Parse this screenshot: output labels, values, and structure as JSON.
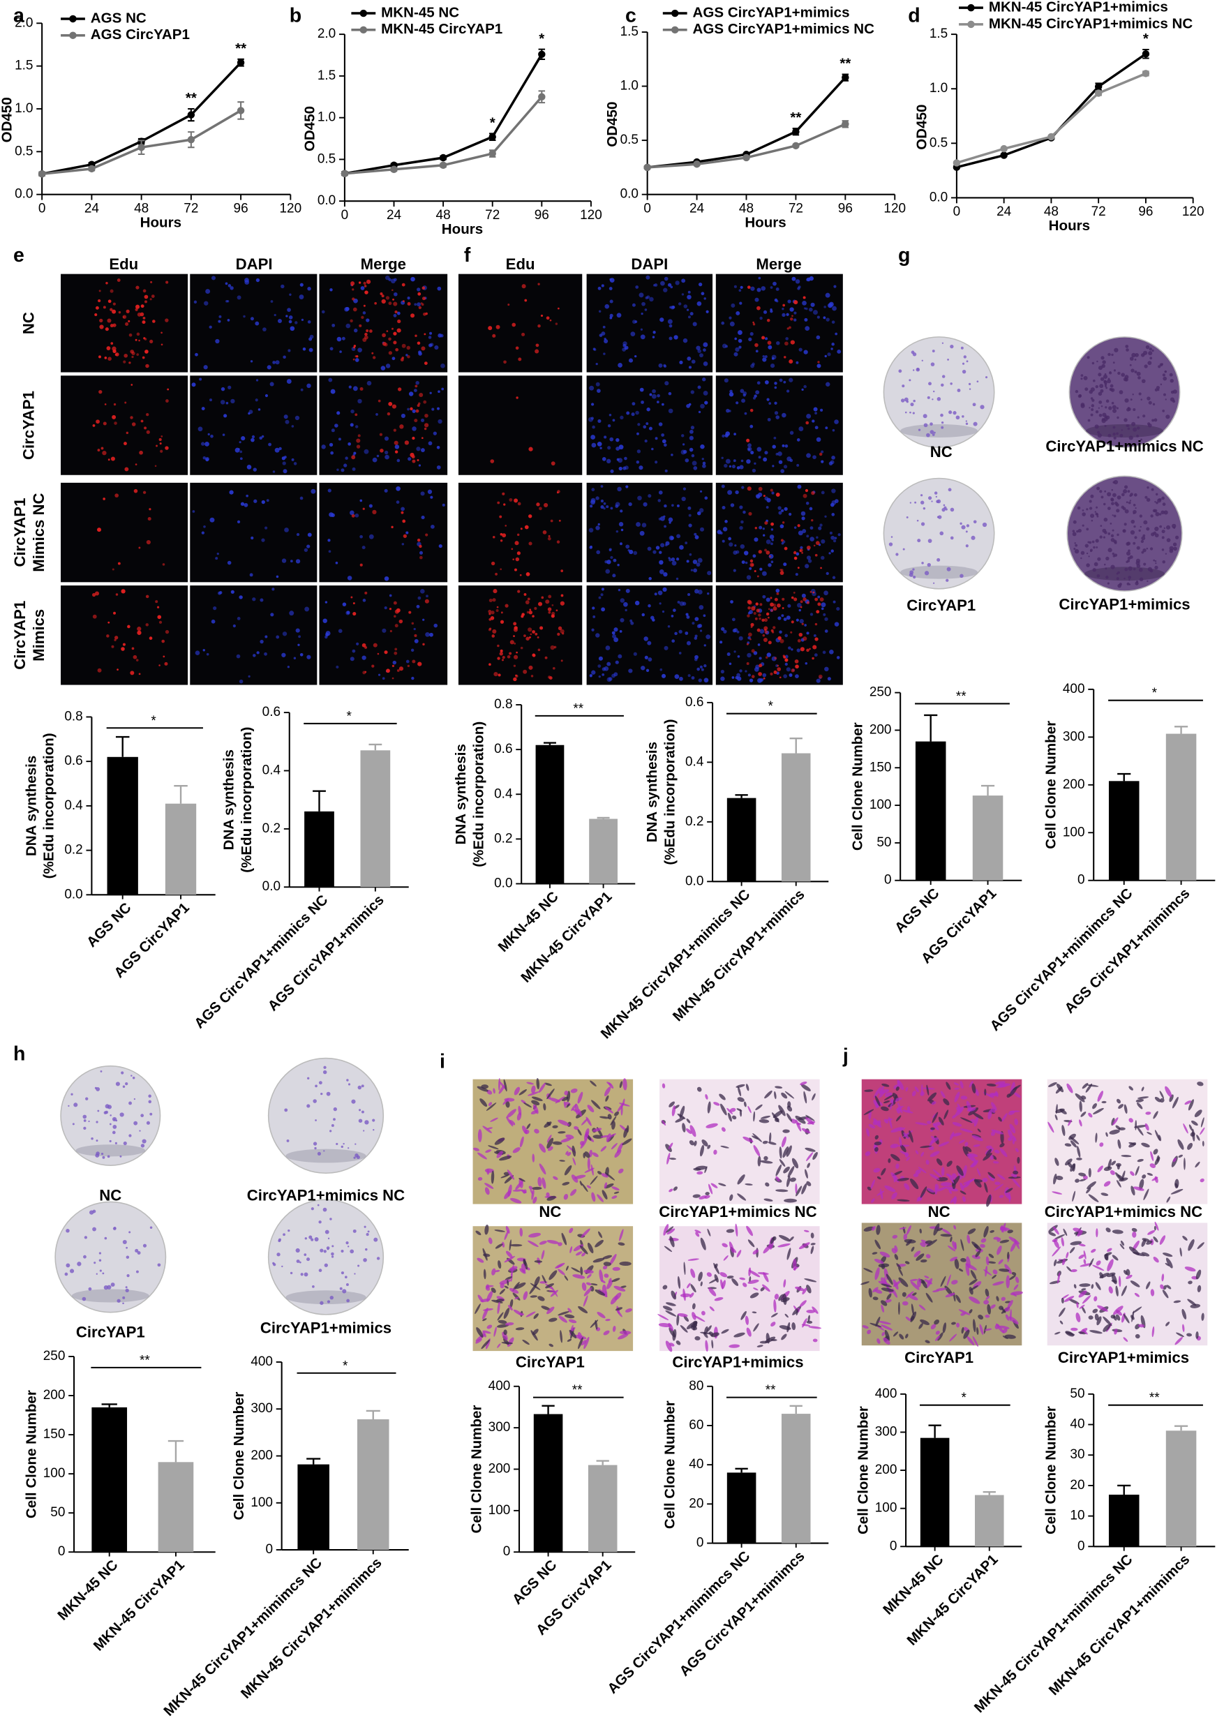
{
  "panel_letters": [
    "a",
    "b",
    "c",
    "d",
    "e",
    "f",
    "g",
    "h",
    "i",
    "j"
  ],
  "image_panels": {
    "e": {
      "columns": [
        "Edu",
        "DAPI",
        "Merge"
      ],
      "rows": [
        [
          "NC"
        ],
        [
          "CircYAP1"
        ],
        [
          "CircYAP1",
          "Mimics NC"
        ],
        [
          "CircYAP1",
          "Mimics"
        ]
      ]
    },
    "f": {
      "columns": [
        "Edu",
        "DAPI",
        "Merge"
      ]
    },
    "g": {
      "labels": [
        "NC",
        "CircYAP1+mimics NC",
        "CircYAP1",
        "CircYAP1+mimics"
      ]
    },
    "h": {
      "labels": [
        "NC",
        "CircYAP1+mimics NC",
        "CircYAP1",
        "CircYAP1+mimics"
      ]
    },
    "i": {
      "labels": [
        "NC",
        "CircYAP1+mimics NC",
        "CircYAP1",
        "CircYAP1+mimics"
      ]
    },
    "j": {
      "labels": [
        "NC",
        "CircYAP1+mimics NC",
        "CircYAP1",
        "CircYAP1+mimics"
      ]
    }
  },
  "chart_data": [
    {
      "type": "line",
      "xlabel": "Hours",
      "ylabel": "OD450",
      "x": [
        0,
        24,
        48,
        72,
        96
      ],
      "xlim": [
        0,
        120
      ],
      "xticks": [
        0,
        24,
        48,
        72,
        96,
        120
      ],
      "ylim": [
        0,
        2
      ],
      "yticks": [
        {
          "value": 0,
          "label": "0.0"
        },
        0.5,
        {
          "value": 1,
          "label": "1.0"
        },
        1.5,
        {
          "value": 2,
          "label": "2.0"
        }
      ],
      "series": [
        {
          "name": "AGS NC",
          "color": "#000000",
          "values": [
            0.24,
            0.35,
            0.62,
            0.93,
            1.54
          ],
          "errors": [
            0.02,
            0.02,
            0.03,
            0.07,
            0.04
          ]
        },
        {
          "name": "AGS CircYAP1",
          "color": "#737373",
          "values": [
            0.24,
            0.3,
            0.55,
            0.64,
            0.98
          ],
          "errors": [
            0.02,
            0.02,
            0.08,
            0.09,
            0.1
          ]
        }
      ],
      "significance": [
        null,
        null,
        null,
        "**",
        "**"
      ]
    },
    {
      "type": "line",
      "xlabel": "Hours",
      "ylabel": "OD450",
      "x": [
        0,
        24,
        48,
        72,
        96
      ],
      "xlim": [
        0,
        120
      ],
      "xticks": [
        0,
        24,
        48,
        72,
        96,
        120
      ],
      "ylim": [
        0,
        2
      ],
      "yticks": [
        {
          "value": 0,
          "label": "0.0"
        },
        0.5,
        {
          "value": 1,
          "label": "1.0"
        },
        1.5,
        {
          "value": 2,
          "label": "2.0"
        }
      ],
      "series": [
        {
          "name": "MKN-45 NC",
          "color": "#000000",
          "values": [
            0.33,
            0.43,
            0.52,
            0.77,
            1.76
          ],
          "errors": [
            0.02,
            0.02,
            0.02,
            0.04,
            0.06
          ]
        },
        {
          "name": "MKN-45 CircYAP1",
          "color": "#737373",
          "values": [
            0.33,
            0.38,
            0.43,
            0.57,
            1.25
          ],
          "errors": [
            0.02,
            0.02,
            0.02,
            0.04,
            0.07
          ]
        }
      ],
      "significance": [
        null,
        null,
        null,
        "*",
        "*"
      ]
    },
    {
      "type": "line",
      "xlabel": "Hours",
      "ylabel": "OD450",
      "x": [
        0,
        24,
        48,
        72,
        96
      ],
      "xlim": [
        0,
        120
      ],
      "xticks": [
        0,
        24,
        48,
        72,
        96,
        120
      ],
      "ylim": [
        0,
        1.5
      ],
      "yticks": [
        {
          "value": 0,
          "label": "0.0"
        },
        0.5,
        {
          "value": 1,
          "label": "1.0"
        },
        1.5
      ],
      "series": [
        {
          "name": "AGS CircYAP1+mimics",
          "color": "#000000",
          "values": [
            0.25,
            0.3,
            0.37,
            0.58,
            1.08
          ],
          "errors": [
            0.01,
            0.01,
            0.01,
            0.03,
            0.03
          ]
        },
        {
          "name": "AGS CircYAP1+mimics NC",
          "color": "#737373",
          "values": [
            0.25,
            0.28,
            0.34,
            0.45,
            0.65
          ],
          "errors": [
            0.01,
            0.01,
            0.01,
            0.01,
            0.03
          ]
        }
      ],
      "significance": [
        null,
        null,
        null,
        "**",
        "**"
      ]
    },
    {
      "type": "line",
      "xlabel": "Hours",
      "ylabel": "OD450",
      "x": [
        0,
        24,
        48,
        72,
        96
      ],
      "xlim": [
        0,
        120
      ],
      "xticks": [
        0,
        24,
        48,
        72,
        96,
        120
      ],
      "ylim": [
        0,
        1.5
      ],
      "yticks": [
        {
          "value": 0,
          "label": "0.0"
        },
        0.5,
        {
          "value": 1,
          "label": "1.0"
        },
        1.5
      ],
      "series": [
        {
          "name": "MKN-45 CircYAP1+mimics",
          "color": "#000000",
          "values": [
            0.28,
            0.39,
            0.55,
            1.02,
            1.32
          ],
          "errors": [
            0.01,
            0.01,
            0.01,
            0.03,
            0.04
          ]
        },
        {
          "name": "MKN-45 CircYAP1+mimics NC",
          "color": "#8c8c8c",
          "values": [
            0.32,
            0.45,
            0.56,
            0.96,
            1.14
          ],
          "errors": [
            0.01,
            0.01,
            0.01,
            0.02,
            0.02
          ]
        }
      ],
      "significance": [
        null,
        null,
        null,
        null,
        "*"
      ]
    },
    {
      "type": "bar",
      "ylabel": [
        "DNA synthesis",
        "(%Edu incorporation)"
      ],
      "categories": [
        "AGS NC",
        "AGS CircYAP1"
      ],
      "values": [
        0.62,
        0.41
      ],
      "errors": [
        0.09,
        0.08
      ],
      "colors": [
        "#000000",
        "#a6a6a6"
      ],
      "ylim": [
        0,
        0.8
      ],
      "yticks": [
        {
          "value": 0,
          "label": "0.0"
        },
        0.2,
        0.4,
        0.6,
        0.8
      ],
      "significance": "*"
    },
    {
      "type": "bar",
      "ylabel": [
        "DNA synthesis",
        "(%Edu incorporation)"
      ],
      "categories": [
        "AGS CircYAP1+mimics NC",
        "AGS CircYAP1+mimics"
      ],
      "values": [
        0.26,
        0.47
      ],
      "errors": [
        0.07,
        0.02
      ],
      "colors": [
        "#000000",
        "#a6a6a6"
      ],
      "ylim": [
        0,
        0.6
      ],
      "yticks": [
        {
          "value": 0,
          "label": "0.0"
        },
        0.2,
        0.4,
        0.6
      ],
      "significance": "*"
    },
    {
      "type": "bar",
      "ylabel": [
        "DNA synthesis",
        "(%Edu incorporation)"
      ],
      "categories": [
        "MKN-45 NC",
        "MKN-45 CircYAP1"
      ],
      "values": [
        0.62,
        0.29
      ],
      "errors": [
        0.01,
        0.005
      ],
      "colors": [
        "#000000",
        "#a6a6a6"
      ],
      "ylim": [
        0,
        0.8
      ],
      "yticks": [
        {
          "value": 0,
          "label": "0.0"
        },
        0.2,
        0.4,
        0.6,
        0.8
      ],
      "significance": "**"
    },
    {
      "type": "bar",
      "ylabel": [
        "DNA synthesis",
        "(%Edu incorporation)"
      ],
      "categories": [
        "MKN-45 CircYAP1+mimics NC",
        "MKN-45 CircYAP1+mimics"
      ],
      "values": [
        0.28,
        0.43
      ],
      "errors": [
        0.01,
        0.05
      ],
      "colors": [
        "#000000",
        "#a6a6a6"
      ],
      "ylim": [
        0,
        0.6
      ],
      "yticks": [
        {
          "value": 0,
          "label": "0.0"
        },
        0.2,
        0.4,
        0.6
      ],
      "significance": "*"
    },
    {
      "type": "bar",
      "ylabel": [
        "Cell Clone Number"
      ],
      "categories": [
        "AGS NC",
        "AGS CircYAP1"
      ],
      "values": [
        185,
        113
      ],
      "errors": [
        35,
        13
      ],
      "colors": [
        "#000000",
        "#a6a6a6"
      ],
      "ylim": [
        0,
        250
      ],
      "yticks": [
        0,
        50,
        100,
        150,
        200,
        250
      ],
      "significance": "**"
    },
    {
      "type": "bar",
      "ylabel": [
        "Cell Clone Number"
      ],
      "categories": [
        "AGS CircYAP1+mimimcs NC",
        "AGS CircYAP1+mimimcs"
      ],
      "values": [
        208,
        307
      ],
      "errors": [
        15,
        15
      ],
      "colors": [
        "#000000",
        "#a6a6a6"
      ],
      "ylim": [
        0,
        400
      ],
      "yticks": [
        0,
        100,
        200,
        300,
        400
      ],
      "significance": "*"
    },
    {
      "type": "bar",
      "ylabel": [
        "Cell Clone Number"
      ],
      "categories": [
        "MKN-45 NC",
        "MKN-45 CircYAP1"
      ],
      "values": [
        185,
        115
      ],
      "errors": [
        4,
        27
      ],
      "colors": [
        "#000000",
        "#a6a6a6"
      ],
      "ylim": [
        0,
        250
      ],
      "yticks": [
        0,
        50,
        100,
        150,
        200,
        250
      ],
      "significance": "**"
    },
    {
      "type": "bar",
      "ylabel": [
        "Cell Clone Number"
      ],
      "categories": [
        "MKN-45 CircYAP1+mimimcs NC",
        "MKN-45 CircYAP1+mimimcs"
      ],
      "values": [
        182,
        278
      ],
      "errors": [
        12,
        18
      ],
      "colors": [
        "#000000",
        "#a6a6a6"
      ],
      "ylim": [
        0,
        400
      ],
      "yticks": [
        0,
        100,
        200,
        300,
        400
      ],
      "significance": "*"
    },
    {
      "type": "bar",
      "ylabel": [
        "Cell Clone Number"
      ],
      "categories": [
        "AGS NC",
        "AGS CircYAP1"
      ],
      "values": [
        333,
        210
      ],
      "errors": [
        20,
        10
      ],
      "colors": [
        "#000000",
        "#a6a6a6"
      ],
      "ylim": [
        0,
        400
      ],
      "yticks": [
        0,
        100,
        200,
        300,
        400
      ],
      "significance": "**"
    },
    {
      "type": "bar",
      "ylabel": [
        "Cell Clone Number"
      ],
      "categories": [
        "AGS CircYAP1+mimimcs NC",
        "AGS CircYAP1+mimimcs"
      ],
      "values": [
        36,
        66
      ],
      "errors": [
        2,
        4
      ],
      "colors": [
        "#000000",
        "#a6a6a6"
      ],
      "ylim": [
        0,
        80
      ],
      "yticks": [
        0,
        20,
        40,
        60,
        80
      ],
      "significance": "**"
    },
    {
      "type": "bar",
      "ylabel": [
        "Cell Clone Number"
      ],
      "categories": [
        "MKN-45 NC",
        "MKN-45 CircYAP1"
      ],
      "values": [
        285,
        135
      ],
      "errors": [
        33,
        8
      ],
      "colors": [
        "#000000",
        "#a6a6a6"
      ],
      "ylim": [
        0,
        400
      ],
      "yticks": [
        0,
        100,
        200,
        300,
        400
      ],
      "significance": "*"
    },
    {
      "type": "bar",
      "ylabel": [
        "Cell Clone Number"
      ],
      "categories": [
        "MKN-45 CircYAP1+mimimcs NC",
        "MKN-45 CircYAP1+mimimcs"
      ],
      "values": [
        17,
        38
      ],
      "errors": [
        3,
        1.5
      ],
      "colors": [
        "#000000",
        "#a6a6a6"
      ],
      "ylim": [
        0,
        50
      ],
      "yticks": [
        0,
        10,
        20,
        30,
        40,
        50
      ],
      "significance": "**"
    }
  ]
}
